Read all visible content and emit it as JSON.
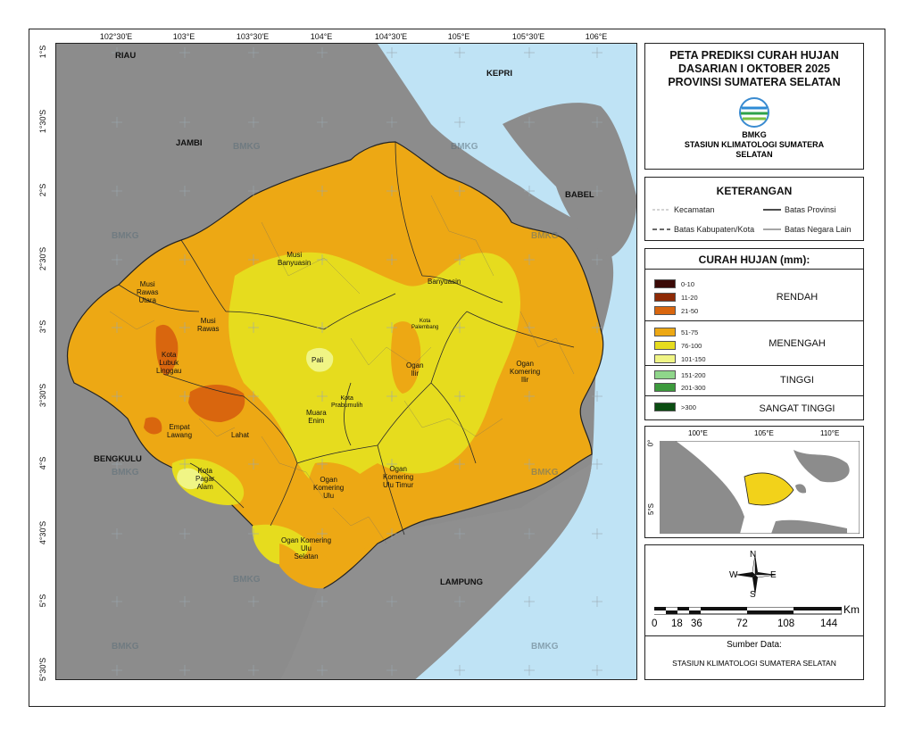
{
  "title": {
    "line1": "PETA PREDIKSI CURAH HUJAN",
    "line2": "DASARIAN I OKTOBER 2025",
    "line3": "PROVINSI SUMATERA SELATAN"
  },
  "agency": {
    "logo_text": "BMKG",
    "station_line1": "STASIUN KLIMATOLOGI SUMATERA",
    "station_line2": "SELATAN"
  },
  "legend": {
    "title": "KETERANGAN",
    "items": [
      "Kecamatan",
      "Batas Provinsi",
      "Batas Kabupaten/Kota",
      "Batas Negara Lain"
    ]
  },
  "rain_legend": {
    "title": "CURAH HUJAN (mm):",
    "classes": [
      {
        "label": "0-10",
        "color": "#3b0a06"
      },
      {
        "label": "11-20",
        "color": "#8e2a06"
      },
      {
        "label": "21-50",
        "color": "#d9660e"
      },
      {
        "label": "51-75",
        "color": "#eda814"
      },
      {
        "label": "76-100",
        "color": "#e6dc1e"
      },
      {
        "label": "101-150",
        "color": "#f0f585"
      },
      {
        "label": "151-200",
        "color": "#8fd68a"
      },
      {
        "label": "201-300",
        "color": "#3c9a3c"
      },
      {
        "label": ">300",
        "color": "#0b4d12"
      }
    ],
    "categories": [
      "RENDAH",
      "MENENGAH",
      "TINGGI",
      "SANGAT TINGGI"
    ]
  },
  "inset": {
    "x_ticks": [
      "100°E",
      "105°E",
      "110°E"
    ],
    "y_ticks": [
      "0°",
      "5°S"
    ]
  },
  "compass": {
    "n": "N",
    "s": "S",
    "e": "E",
    "w": "W"
  },
  "scale": {
    "unit": "Km",
    "labels": [
      "0",
      "18",
      "36",
      "72",
      "108",
      "144"
    ]
  },
  "source": {
    "title": "Sumber Data:",
    "text": "STASIUN KLIMATOLOGI SUMATERA SELATAN"
  },
  "axes": {
    "x_ticks": [
      "102°30'E",
      "103°E",
      "103°30'E",
      "104°E",
      "104°30'E",
      "105°E",
      "105°30'E",
      "106°E"
    ],
    "y_ticks": [
      "1°S",
      "1°30'S",
      "2°S",
      "2°30'S",
      "3°S",
      "3°30'S",
      "4°S",
      "4°30'S",
      "5°S",
      "5°30'S"
    ]
  },
  "provinces": [
    "RIAU",
    "JAMBI",
    "KEPRI",
    "BABEL",
    "BENGKULU",
    "LAMPUNG"
  ],
  "regions": {
    "musi_banyuasin": "Musi\nBanyuasin",
    "banyuasin": "Banyuasin",
    "musi_rawas_utara": "Musi\nRawas\nUtara",
    "musi_rawas": "Musi\nRawas",
    "lubuk_linggau": "Kota\nLubuk\nLinggau",
    "palembang": "Kota\nPalembang",
    "pali": "Pali",
    "ogan_ilir": "Ogan\nIlir",
    "ogan_komering_ilir": "Ogan\nKomering\nIlir",
    "prabumulih": "Kota\nPrabumulih",
    "muara_enim": "Muara\nEnim",
    "empat_lawang": "Empat\nLawang",
    "lahat": "Lahat",
    "pagar_alam": "Kota\nPagar\nAlam",
    "oku": "Ogan\nKomering\nUlu",
    "oku_timur": "Ogan\nKomering\nUlu Timur",
    "oku_selatan": "Ogan Komering\nUlu\nSelatan"
  },
  "watermark": "BMKG"
}
